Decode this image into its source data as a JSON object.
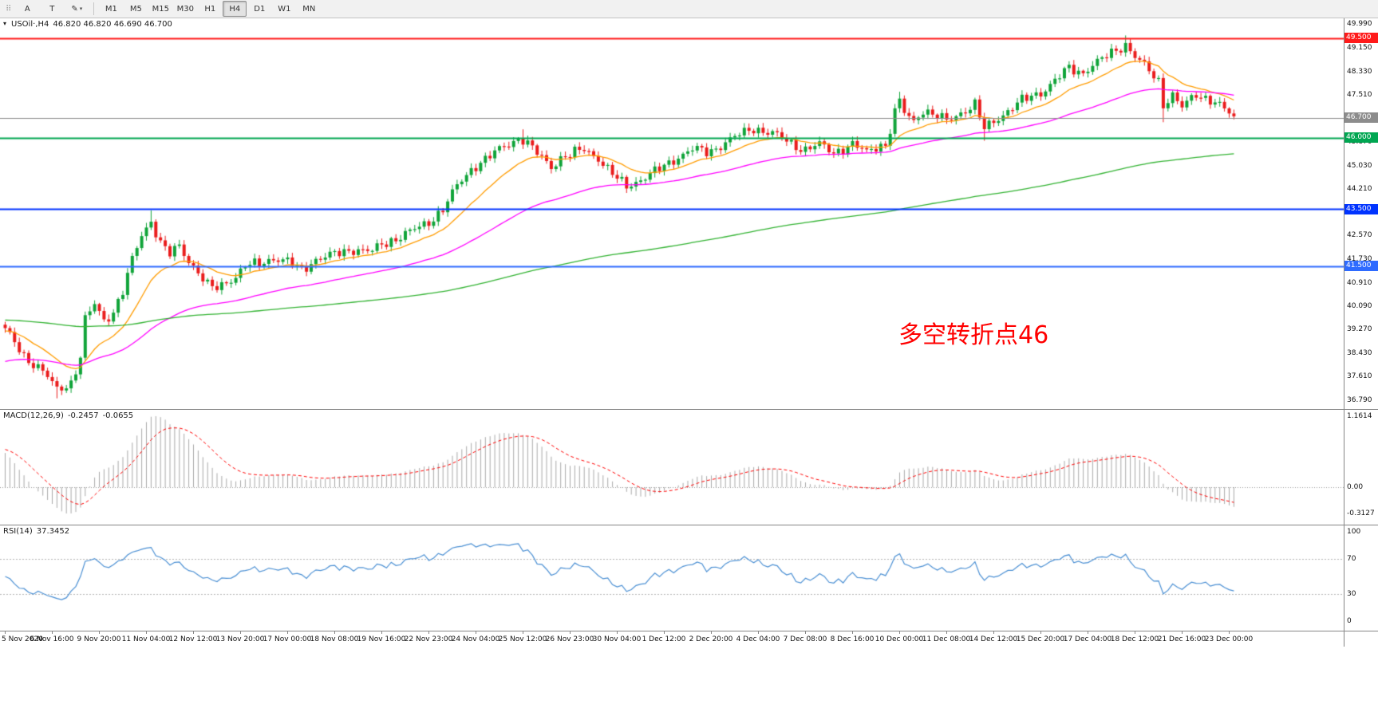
{
  "toolbar": {
    "icons": {
      "grip": "⠿",
      "draw": "✎",
      "caret": "▾"
    },
    "cursor_label": "A",
    "text_label": "T",
    "timeframes": [
      "M1",
      "M5",
      "M15",
      "M30",
      "H1",
      "H4",
      "D1",
      "W1",
      "MN"
    ],
    "active_timeframe": "H4"
  },
  "main": {
    "symbol_caret": "▾",
    "symbol_header": "USOil·,H4",
    "ohlc": "46.820 46.820 46.690 46.700",
    "annotation": "多空转折点46",
    "annotation_color": "#ff0000",
    "price_ticks": [
      "49.990",
      "49.150",
      "48.330",
      "47.510",
      "45.870",
      "45.030",
      "44.210",
      "43.390",
      "42.570",
      "41.730",
      "40.910",
      "40.090",
      "39.270",
      "38.430",
      "37.610",
      "36.790"
    ],
    "badges": [
      {
        "text": "49.500",
        "price": 49.5,
        "bg": "#ff1a1a"
      },
      {
        "text": "46.700",
        "price": 46.7,
        "bg": "#8c8c8c"
      },
      {
        "text": "46.000",
        "price": 46.0,
        "bg": "#00a651"
      },
      {
        "text": "43.500",
        "price": 43.5,
        "bg": "#0033ff"
      },
      {
        "text": "41.500",
        "price": 41.5,
        "bg": "#2e6bff"
      }
    ],
    "levels": [
      {
        "price": 46.7,
        "color": "#8c8c8c",
        "width": 1
      },
      {
        "price": 49.5,
        "color": "#ff1a1a",
        "width": 2
      },
      {
        "price": 46.0,
        "color": "#00a651",
        "width": 2
      },
      {
        "price": 43.5,
        "color": "#0033ff",
        "width": 2
      },
      {
        "price": 41.5,
        "color": "#2e6bff",
        "width": 2
      }
    ],
    "candles": {
      "count": 262,
      "up_color": "#10a439",
      "down_color": "#ea1c1c",
      "anchors": [
        [
          0,
          39.25
        ],
        [
          4,
          38.35
        ],
        [
          8,
          37.8
        ],
        [
          11,
          37.15
        ],
        [
          14,
          37.4
        ],
        [
          16,
          38.3
        ],
        [
          17,
          39.6
        ],
        [
          19,
          40.15
        ],
        [
          21,
          39.6
        ],
        [
          23,
          39.9
        ],
        [
          25,
          40.6
        ],
        [
          27,
          41.7
        ],
        [
          29,
          42.6
        ],
        [
          31,
          43.1
        ],
        [
          33,
          42.3
        ],
        [
          35,
          41.9
        ],
        [
          37,
          42.2
        ],
        [
          39,
          41.7
        ],
        [
          41,
          41.3
        ],
        [
          43,
          40.8
        ],
        [
          45,
          40.7
        ],
        [
          47,
          40.95
        ],
        [
          49,
          41.15
        ],
        [
          51,
          41.5
        ],
        [
          54,
          41.55
        ],
        [
          57,
          41.8
        ],
        [
          60,
          41.65
        ],
        [
          63,
          41.35
        ],
        [
          66,
          41.75
        ],
        [
          70,
          41.9
        ],
        [
          74,
          42.1
        ],
        [
          78,
          42.0
        ],
        [
          80,
          42.25
        ],
        [
          84,
          42.55
        ],
        [
          88,
          42.85
        ],
        [
          90,
          43.05
        ],
        [
          93,
          43.5
        ],
        [
          96,
          44.3
        ],
        [
          99,
          44.9
        ],
        [
          100,
          45.05
        ],
        [
          103,
          45.35
        ],
        [
          106,
          45.7
        ],
        [
          109,
          46.0
        ],
        [
          110,
          45.95
        ],
        [
          113,
          45.45
        ],
        [
          116,
          45.0
        ],
        [
          118,
          45.3
        ],
        [
          120,
          45.4
        ],
        [
          123,
          45.6
        ],
        [
          126,
          45.3
        ],
        [
          128,
          44.9
        ],
        [
          130,
          44.55
        ],
        [
          132,
          44.3
        ],
        [
          135,
          44.55
        ],
        [
          138,
          44.8
        ],
        [
          140,
          45.0
        ],
        [
          143,
          45.35
        ],
        [
          146,
          45.6
        ],
        [
          149,
          45.5
        ],
        [
          150,
          45.55
        ],
        [
          153,
          45.85
        ],
        [
          156,
          46.1
        ],
        [
          159,
          46.35
        ],
        [
          160,
          46.3
        ],
        [
          163,
          46.15
        ],
        [
          166,
          45.9
        ],
        [
          169,
          45.65
        ],
        [
          170,
          45.6
        ],
        [
          173,
          45.75
        ],
        [
          176,
          45.5
        ],
        [
          179,
          45.7
        ],
        [
          180,
          45.75
        ],
        [
          183,
          45.5
        ],
        [
          186,
          45.8
        ],
        [
          187,
          45.7
        ],
        [
          189,
          46.9
        ],
        [
          190,
          47.25
        ],
        [
          191,
          46.9
        ],
        [
          193,
          46.6
        ],
        [
          195,
          47.0
        ],
        [
          197,
          46.8
        ],
        [
          200,
          46.6
        ],
        [
          203,
          46.9
        ],
        [
          206,
          47.15
        ],
        [
          208,
          46.3
        ],
        [
          210,
          46.6
        ],
        [
          213,
          46.95
        ],
        [
          216,
          47.3
        ],
        [
          219,
          47.55
        ],
        [
          220,
          47.6
        ],
        [
          223,
          48.0
        ],
        [
          226,
          48.45
        ],
        [
          229,
          48.3
        ],
        [
          230,
          48.45
        ],
        [
          233,
          48.75
        ],
        [
          236,
          49.1
        ],
        [
          238,
          49.3
        ],
        [
          240,
          48.85
        ],
        [
          243,
          48.35
        ],
        [
          245,
          48.0
        ],
        [
          246,
          47.2
        ],
        [
          248,
          47.5
        ],
        [
          250,
          47.05
        ],
        [
          253,
          47.55
        ],
        [
          256,
          47.35
        ],
        [
          259,
          47.0
        ],
        [
          261,
          46.7
        ]
      ],
      "wick_overrides": {
        "11": [
          null,
          36.85
        ],
        "31": [
          43.45,
          null
        ],
        "110": [
          46.3,
          null
        ],
        "190": [
          47.62,
          null
        ],
        "208": [
          null,
          45.9
        ],
        "238": [
          49.6,
          null
        ],
        "246": [
          null,
          46.55
        ]
      }
    },
    "ma": [
      {
        "name": "fast",
        "color": "#ff9c00",
        "alpha": 0.12,
        "seed": 39.2
      },
      {
        "name": "mid",
        "color": "#ff00ff",
        "alpha": 0.035,
        "seed": 38.1
      },
      {
        "name": "slow",
        "color": "#33b333",
        "alpha": 0.009,
        "seed": 39.6
      }
    ],
    "time_labels": [
      "5 Nov 2020",
      "6 Nov 16:00",
      "9 Nov 20:00",
      "11 Nov 04:00",
      "12 Nov 12:00",
      "13 Nov 20:00",
      "17 Nov 00:00",
      "18 Nov 08:00",
      "19 Nov 16:00",
      "22 Nov 23:00",
      "24 Nov 04:00",
      "25 Nov 12:00",
      "26 Nov 23:00",
      "30 Nov 04:00",
      "1 Dec 12:00",
      "2 Dec 20:00",
      "4 Dec 04:00",
      "7 Dec 08:00",
      "8 Dec 16:00",
      "10 Dec 00:00",
      "11 Dec 08:00",
      "14 Dec 12:00",
      "15 Dec 20:00",
      "17 Dec 04:00",
      "18 Dec 12:00",
      "21 Dec 16:00",
      "23 Dec 00:00"
    ]
  },
  "macd": {
    "header": "MACD(12,26,9)",
    "value_main": "-0.2457",
    "value_signal": "-0.0655",
    "axis_labels": [
      "1.1614",
      "0.00",
      "-0.3127"
    ],
    "hist_color": "#a8a8a8",
    "signal_color": "#ff0000"
  },
  "rsi": {
    "header": "RSI(14)",
    "value": "37.3452",
    "axis_labels": [
      "100",
      "70",
      "30",
      "0"
    ],
    "level_values": [
      70,
      30
    ],
    "line_color": "#4a8fd3"
  }
}
